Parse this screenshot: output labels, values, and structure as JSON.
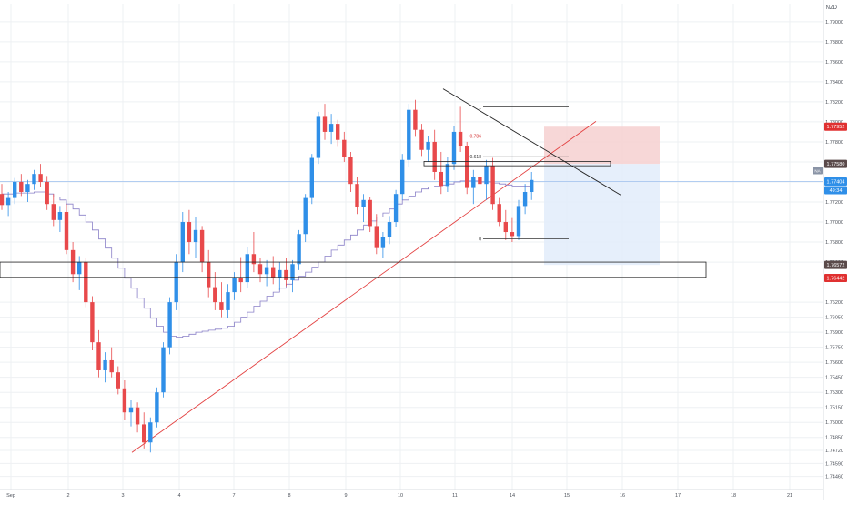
{
  "instrument": {
    "quote_currency": "NZD"
  },
  "colors": {
    "up": "#2f8fe8",
    "down": "#e8494b",
    "grid": "#eef0f3",
    "axis_text": "#4a4f58",
    "ma_line": "#8a80c8",
    "trendline": "#e34141",
    "fib_line": "#333333",
    "fib_786": "#d32f2f",
    "stop_zone": "#f6d0d0",
    "target_zone": "#e2ecfa",
    "badge_blue": "#2f8fe8",
    "badge_red": "#e03131",
    "badge_dark": "#5a4a4a",
    "badge_grey": "#8a94a6"
  },
  "chart_data": {
    "type": "candlestick",
    "y_axis": {
      "range": [
        1.7433,
        1.7918
      ],
      "ticks": [
        "1.79000",
        "1.78800",
        "1.78600",
        "1.78400",
        "1.78200",
        "1.78000",
        "1.77800",
        "1.77600",
        "1.77400",
        "1.77200",
        "1.77000",
        "1.76800",
        "1.76600",
        "1.76200",
        "1.76050",
        "1.75900",
        "1.75750",
        "1.75600",
        "1.75450",
        "1.75300",
        "1.75150",
        "1.75000",
        "1.74850",
        "1.74720",
        "1.74590",
        "1.74460"
      ]
    },
    "x_axis": {
      "ticks": [
        "Sep",
        "2",
        "3",
        "4",
        "7",
        "8",
        "9",
        "10",
        "11",
        "14",
        "15",
        "16",
        "17",
        "18",
        "21"
      ]
    },
    "price_badges": [
      {
        "label": "1.77952",
        "value": 1.77952,
        "style": "red"
      },
      {
        "label": "1.77580",
        "value": 1.7758,
        "style": "dark"
      },
      {
        "label": "1.77404",
        "value": 1.77404,
        "style": "blue"
      },
      {
        "label": "49:34",
        "value": 1.77318,
        "style": "blue"
      },
      {
        "label": "1.76572",
        "value": 1.76572,
        "style": "dark"
      },
      {
        "label": "1.76442",
        "value": 1.76442,
        "style": "red"
      }
    ],
    "left_badge": {
      "label": "NA"
    },
    "fib_levels": [
      {
        "label": "1",
        "value": 1.78148
      },
      {
        "label": "0.786",
        "value": 1.77858
      },
      {
        "label": "0.618",
        "value": 1.77652
      },
      {
        "label": "0",
        "value": 1.76832
      }
    ],
    "candles": [
      {
        "o": 1.7728,
        "h": 1.7738,
        "l": 1.7712,
        "c": 1.7717
      },
      {
        "o": 1.7717,
        "h": 1.773,
        "l": 1.7706,
        "c": 1.7724
      },
      {
        "o": 1.7724,
        "h": 1.7744,
        "l": 1.7718,
        "c": 1.774
      },
      {
        "o": 1.774,
        "h": 1.7748,
        "l": 1.7726,
        "c": 1.773
      },
      {
        "o": 1.773,
        "h": 1.7742,
        "l": 1.772,
        "c": 1.7738
      },
      {
        "o": 1.7738,
        "h": 1.7752,
        "l": 1.7732,
        "c": 1.7748
      },
      {
        "o": 1.7748,
        "h": 1.7758,
        "l": 1.7735,
        "c": 1.774
      },
      {
        "o": 1.774,
        "h": 1.7746,
        "l": 1.7712,
        "c": 1.7718
      },
      {
        "o": 1.7718,
        "h": 1.7728,
        "l": 1.7696,
        "c": 1.7702
      },
      {
        "o": 1.7702,
        "h": 1.7716,
        "l": 1.769,
        "c": 1.771
      },
      {
        "o": 1.771,
        "h": 1.7718,
        "l": 1.7668,
        "c": 1.7672
      },
      {
        "o": 1.7672,
        "h": 1.768,
        "l": 1.764,
        "c": 1.7648
      },
      {
        "o": 1.7648,
        "h": 1.7666,
        "l": 1.7632,
        "c": 1.766
      },
      {
        "o": 1.766,
        "h": 1.7664,
        "l": 1.7615,
        "c": 1.762
      },
      {
        "o": 1.762,
        "h": 1.7626,
        "l": 1.7572,
        "c": 1.758
      },
      {
        "o": 1.758,
        "h": 1.7592,
        "l": 1.7545,
        "c": 1.7552
      },
      {
        "o": 1.7552,
        "h": 1.757,
        "l": 1.754,
        "c": 1.7562
      },
      {
        "o": 1.7562,
        "h": 1.7575,
        "l": 1.7545,
        "c": 1.755
      },
      {
        "o": 1.755,
        "h": 1.7556,
        "l": 1.7528,
        "c": 1.7534
      },
      {
        "o": 1.7534,
        "h": 1.7542,
        "l": 1.7502,
        "c": 1.751
      },
      {
        "o": 1.751,
        "h": 1.7522,
        "l": 1.7496,
        "c": 1.7515
      },
      {
        "o": 1.7515,
        "h": 1.752,
        "l": 1.749,
        "c": 1.7498
      },
      {
        "o": 1.7498,
        "h": 1.751,
        "l": 1.7474,
        "c": 1.748
      },
      {
        "o": 1.748,
        "h": 1.7505,
        "l": 1.747,
        "c": 1.75
      },
      {
        "o": 1.75,
        "h": 1.7535,
        "l": 1.7495,
        "c": 1.753
      },
      {
        "o": 1.753,
        "h": 1.758,
        "l": 1.7525,
        "c": 1.7575
      },
      {
        "o": 1.7575,
        "h": 1.7625,
        "l": 1.7568,
        "c": 1.762
      },
      {
        "o": 1.762,
        "h": 1.7668,
        "l": 1.7612,
        "c": 1.766
      },
      {
        "o": 1.766,
        "h": 1.771,
        "l": 1.765,
        "c": 1.77
      },
      {
        "o": 1.77,
        "h": 1.7712,
        "l": 1.7668,
        "c": 1.768
      },
      {
        "o": 1.768,
        "h": 1.7705,
        "l": 1.7664,
        "c": 1.7692
      },
      {
        "o": 1.7692,
        "h": 1.7696,
        "l": 1.765,
        "c": 1.766
      },
      {
        "o": 1.766,
        "h": 1.7672,
        "l": 1.7625,
        "c": 1.7635
      },
      {
        "o": 1.7635,
        "h": 1.765,
        "l": 1.7612,
        "c": 1.762
      },
      {
        "o": 1.762,
        "h": 1.764,
        "l": 1.7605,
        "c": 1.7612
      },
      {
        "o": 1.7612,
        "h": 1.7638,
        "l": 1.7604,
        "c": 1.763
      },
      {
        "o": 1.763,
        "h": 1.765,
        "l": 1.7622,
        "c": 1.7645
      },
      {
        "o": 1.7645,
        "h": 1.7665,
        "l": 1.763,
        "c": 1.764
      },
      {
        "o": 1.764,
        "h": 1.7675,
        "l": 1.7634,
        "c": 1.7668
      },
      {
        "o": 1.7668,
        "h": 1.769,
        "l": 1.765,
        "c": 1.7658
      },
      {
        "o": 1.7658,
        "h": 1.7664,
        "l": 1.764,
        "c": 1.7648
      },
      {
        "o": 1.7648,
        "h": 1.7662,
        "l": 1.7636,
        "c": 1.7655
      },
      {
        "o": 1.7655,
        "h": 1.7666,
        "l": 1.7638,
        "c": 1.7645
      },
      {
        "o": 1.7645,
        "h": 1.766,
        "l": 1.7632,
        "c": 1.7652
      },
      {
        "o": 1.7652,
        "h": 1.7664,
        "l": 1.7636,
        "c": 1.7642
      },
      {
        "o": 1.7642,
        "h": 1.7662,
        "l": 1.763,
        "c": 1.7658
      },
      {
        "o": 1.7658,
        "h": 1.7692,
        "l": 1.7652,
        "c": 1.7688
      },
      {
        "o": 1.7688,
        "h": 1.7728,
        "l": 1.768,
        "c": 1.7724
      },
      {
        "o": 1.7724,
        "h": 1.7768,
        "l": 1.7718,
        "c": 1.7764
      },
      {
        "o": 1.7764,
        "h": 1.781,
        "l": 1.7758,
        "c": 1.7805
      },
      {
        "o": 1.7805,
        "h": 1.7818,
        "l": 1.7782,
        "c": 1.779
      },
      {
        "o": 1.779,
        "h": 1.7808,
        "l": 1.7778,
        "c": 1.7798
      },
      {
        "o": 1.7798,
        "h": 1.7802,
        "l": 1.7775,
        "c": 1.7782
      },
      {
        "o": 1.7782,
        "h": 1.779,
        "l": 1.776,
        "c": 1.7765
      },
      {
        "o": 1.7765,
        "h": 1.777,
        "l": 1.773,
        "c": 1.7738
      },
      {
        "o": 1.7738,
        "h": 1.7745,
        "l": 1.7708,
        "c": 1.7715
      },
      {
        "o": 1.7715,
        "h": 1.7728,
        "l": 1.77,
        "c": 1.7722
      },
      {
        "o": 1.7722,
        "h": 1.7725,
        "l": 1.769,
        "c": 1.7696
      },
      {
        "o": 1.7696,
        "h": 1.7708,
        "l": 1.7668,
        "c": 1.7674
      },
      {
        "o": 1.7674,
        "h": 1.769,
        "l": 1.7664,
        "c": 1.7685
      },
      {
        "o": 1.7685,
        "h": 1.7706,
        "l": 1.7678,
        "c": 1.77
      },
      {
        "o": 1.77,
        "h": 1.7732,
        "l": 1.7695,
        "c": 1.7728
      },
      {
        "o": 1.7728,
        "h": 1.7768,
        "l": 1.7722,
        "c": 1.7762
      },
      {
        "o": 1.7762,
        "h": 1.7818,
        "l": 1.7755,
        "c": 1.7812
      },
      {
        "o": 1.7812,
        "h": 1.7822,
        "l": 1.7785,
        "c": 1.7792
      },
      {
        "o": 1.7792,
        "h": 1.7798,
        "l": 1.7766,
        "c": 1.7772
      },
      {
        "o": 1.7772,
        "h": 1.7786,
        "l": 1.776,
        "c": 1.778
      },
      {
        "o": 1.778,
        "h": 1.7792,
        "l": 1.7742,
        "c": 1.775
      },
      {
        "o": 1.775,
        "h": 1.777,
        "l": 1.7728,
        "c": 1.7736
      },
      {
        "o": 1.7736,
        "h": 1.7765,
        "l": 1.773,
        "c": 1.7758
      },
      {
        "o": 1.7758,
        "h": 1.7796,
        "l": 1.7752,
        "c": 1.779
      },
      {
        "o": 1.779,
        "h": 1.7815,
        "l": 1.777,
        "c": 1.7776
      },
      {
        "o": 1.7776,
        "h": 1.778,
        "l": 1.7728,
        "c": 1.7734
      },
      {
        "o": 1.7734,
        "h": 1.7752,
        "l": 1.7718,
        "c": 1.7745
      },
      {
        "o": 1.7745,
        "h": 1.777,
        "l": 1.773,
        "c": 1.7738
      },
      {
        "o": 1.7738,
        "h": 1.7762,
        "l": 1.7722,
        "c": 1.7756
      },
      {
        "o": 1.7756,
        "h": 1.7764,
        "l": 1.7712,
        "c": 1.7718
      },
      {
        "o": 1.7718,
        "h": 1.7724,
        "l": 1.7696,
        "c": 1.77
      },
      {
        "o": 1.77,
        "h": 1.7712,
        "l": 1.7682,
        "c": 1.769
      },
      {
        "o": 1.769,
        "h": 1.7704,
        "l": 1.768,
        "c": 1.7686
      },
      {
        "o": 1.7686,
        "h": 1.7722,
        "l": 1.7682,
        "c": 1.7716
      },
      {
        "o": 1.7716,
        "h": 1.7738,
        "l": 1.7708,
        "c": 1.773
      },
      {
        "o": 1.773,
        "h": 1.775,
        "l": 1.7722,
        "c": 1.7742
      }
    ],
    "moving_average": [
      1.7728,
      1.7728,
      1.7729,
      1.7729,
      1.7729,
      1.773,
      1.773,
      1.7728,
      1.7725,
      1.7722,
      1.7718,
      1.7713,
      1.7707,
      1.77,
      1.7692,
      1.7683,
      1.7674,
      1.7664,
      1.7654,
      1.7644,
      1.7634,
      1.7624,
      1.7614,
      1.7604,
      1.7596,
      1.759,
      1.7586,
      1.7585,
      1.7586,
      1.7588,
      1.759,
      1.7591,
      1.7592,
      1.7593,
      1.7594,
      1.7596,
      1.76,
      1.7605,
      1.761,
      1.7616,
      1.7621,
      1.7626,
      1.763,
      1.7634,
      1.7638,
      1.7642,
      1.7646,
      1.765,
      1.7655,
      1.766,
      1.7666,
      1.7672,
      1.7677,
      1.7682,
      1.7687,
      1.7692,
      1.7697,
      1.7701,
      1.7705,
      1.7709,
      1.7713,
      1.7718,
      1.7722,
      1.7726,
      1.773,
      1.7733,
      1.7735,
      1.7736,
      1.7737,
      1.7738,
      1.774,
      1.7741,
      1.7741,
      1.7741,
      1.774,
      1.774,
      1.7739,
      1.7738,
      1.7737,
      1.7736,
      1.7736,
      1.7736,
      1.7737
    ]
  }
}
